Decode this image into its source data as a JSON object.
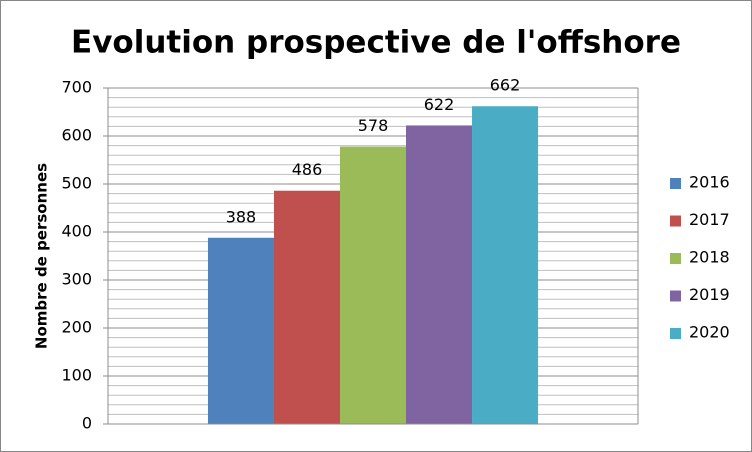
{
  "chart_data": {
    "type": "bar",
    "title": "Evolution prospective de l'offshore",
    "y_label": "Nombre de personnes",
    "categories": [
      null
    ],
    "series": [
      {
        "name": "2016",
        "color": "#4f81bd",
        "values": [
          388
        ]
      },
      {
        "name": "2017",
        "color": "#c0504d",
        "values": [
          486
        ]
      },
      {
        "name": "2018",
        "color": "#9bbb59",
        "values": [
          578
        ]
      },
      {
        "name": "2019",
        "color": "#8064a2",
        "values": [
          622
        ]
      },
      {
        "name": "2020",
        "color": "#4bacc6",
        "values": [
          662
        ]
      }
    ],
    "ylim": [
      0,
      700
    ],
    "yticks": [
      0,
      100,
      200,
      300,
      400,
      500,
      600,
      700
    ],
    "minor_yticks": [
      20,
      40,
      60,
      80,
      120,
      140,
      160,
      180,
      220,
      240,
      260,
      280,
      320,
      340,
      360,
      380,
      420,
      440,
      460,
      480,
      520,
      540,
      560,
      580,
      620,
      640,
      660,
      680
    ],
    "grid": true,
    "legend": "right"
  }
}
